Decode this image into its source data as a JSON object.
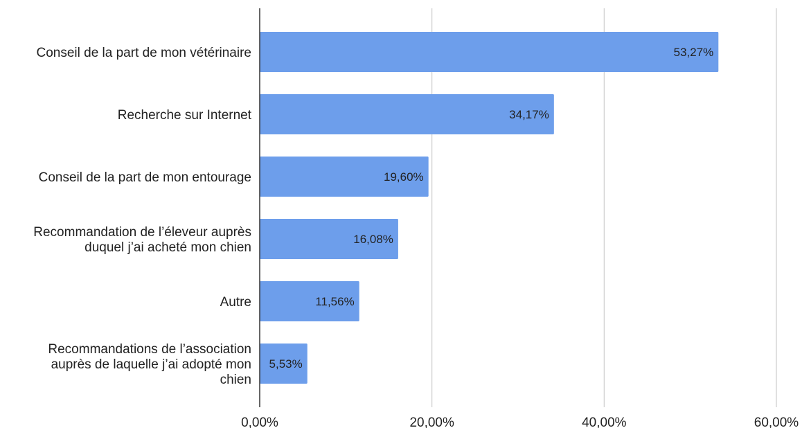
{
  "chart_data": {
    "type": "bar",
    "orientation": "horizontal",
    "categories": [
      [
        "Conseil de la part de mon vétérinaire"
      ],
      [
        "Recherche sur Internet"
      ],
      [
        "Conseil de la part de mon entourage"
      ],
      [
        "Recommandation de l’éleveur auprès",
        "duquel j’ai acheté mon chien"
      ],
      [
        "Autre"
      ],
      [
        "Recommandations de l’association",
        "auprès de laquelle j’ai adopté mon",
        "chien"
      ]
    ],
    "values": [
      53.27,
      34.17,
      19.6,
      16.08,
      11.56,
      5.53
    ],
    "data_labels": [
      "53,27%",
      "34,17%",
      "19,60%",
      "16,08%",
      "11,56%",
      "5,53%"
    ],
    "xlim": [
      0,
      60
    ],
    "x_ticks": [
      0,
      20,
      40,
      60
    ],
    "x_tick_labels": [
      "0,00%",
      "20,00%",
      "40,00%",
      "60,00%"
    ],
    "grid": true,
    "legend": "none",
    "bar_color": "#6d9eeb",
    "grid_color": "#cccccc",
    "axis_color": "#333333"
  }
}
